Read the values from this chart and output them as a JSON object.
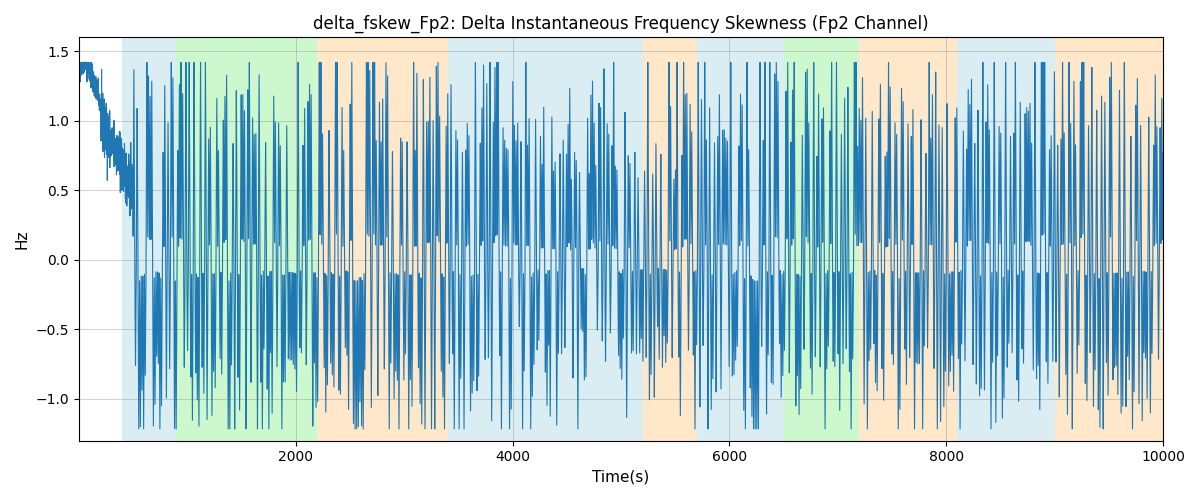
{
  "title": "delta_fskew_Fp2: Delta Instantaneous Frequency Skewness (Fp2 Channel)",
  "xlabel": "Time(s)",
  "ylabel": "Hz",
  "xlim": [
    0,
    10000
  ],
  "ylim": [
    -1.3,
    1.6
  ],
  "yticks": [
    -1.0,
    -0.5,
    0.0,
    0.5,
    1.0,
    1.5
  ],
  "xticks": [
    2000,
    4000,
    6000,
    8000,
    10000
  ],
  "line_color": "#1f77b4",
  "line_width": 0.8,
  "figsize": [
    12,
    5
  ],
  "dpi": 100,
  "background_bands": [
    {
      "xmin": 400,
      "xmax": 900,
      "color": "#add8e6",
      "alpha": 0.45
    },
    {
      "xmin": 900,
      "xmax": 2200,
      "color": "#90ee90",
      "alpha": 0.45
    },
    {
      "xmin": 2200,
      "xmax": 3400,
      "color": "#ffd59e",
      "alpha": 0.55
    },
    {
      "xmin": 3400,
      "xmax": 3800,
      "color": "#add8e6",
      "alpha": 0.45
    },
    {
      "xmin": 3800,
      "xmax": 5200,
      "color": "#add8e6",
      "alpha": 0.45
    },
    {
      "xmin": 5200,
      "xmax": 5700,
      "color": "#ffd59e",
      "alpha": 0.55
    },
    {
      "xmin": 5700,
      "xmax": 6200,
      "color": "#add8e6",
      "alpha": 0.45
    },
    {
      "xmin": 6200,
      "xmax": 6500,
      "color": "#add8e6",
      "alpha": 0.45
    },
    {
      "xmin": 6500,
      "xmax": 7200,
      "color": "#90ee90",
      "alpha": 0.45
    },
    {
      "xmin": 7200,
      "xmax": 8100,
      "color": "#ffd59e",
      "alpha": 0.55
    },
    {
      "xmin": 8100,
      "xmax": 9000,
      "color": "#add8e6",
      "alpha": 0.45
    },
    {
      "xmin": 9000,
      "xmax": 10000,
      "color": "#ffd59e",
      "alpha": 0.55
    }
  ],
  "seed": 42,
  "n_points": 10000,
  "time_start": 0,
  "time_end": 10000
}
